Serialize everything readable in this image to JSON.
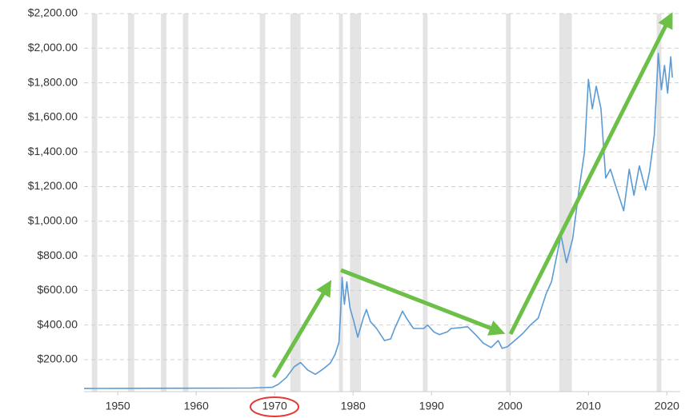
{
  "chart_data": {
    "type": "line",
    "color": "#5b9bd5",
    "band_color": "#e4e4e4",
    "xlim": [
      1945.7,
      2021.7
    ],
    "ylim": [
      15,
      2200
    ],
    "grid": true,
    "xticks": [
      1950,
      1960,
      1970,
      1980,
      1990,
      2000,
      2010,
      2020
    ],
    "yticks": [
      {
        "value": 200,
        "label": "$200.00"
      },
      {
        "value": 400,
        "label": "$400.00"
      },
      {
        "value": 600,
        "label": "$600.00"
      },
      {
        "value": 800,
        "label": "$800.00"
      },
      {
        "value": 1000,
        "label": "$1,000.00"
      },
      {
        "value": 1200,
        "label": "$1,200.00"
      },
      {
        "value": 1400,
        "label": "$1,400.00"
      },
      {
        "value": 1600,
        "label": "$1,600.00"
      },
      {
        "value": 1800,
        "label": "$1,800.00"
      },
      {
        "value": 2000,
        "label": "$2,000.00"
      },
      {
        "value": 2200,
        "label": "$2,200.00"
      }
    ],
    "shaded_periods": [
      [
        1946.7,
        1947.4
      ],
      [
        1951.3,
        1952.1
      ],
      [
        1955.5,
        1956.2
      ],
      [
        1958.3,
        1959.0
      ],
      [
        1968.1,
        1968.8
      ],
      [
        1972.0,
        1973.3
      ],
      [
        1978.2,
        1978.7
      ],
      [
        1979.6,
        1981.0
      ],
      [
        1988.9,
        1989.5
      ],
      [
        1999.5,
        2000.1
      ],
      [
        2006.3,
        2007.9
      ],
      [
        2018.7,
        2019.3
      ]
    ],
    "x": [
      1945.7,
      1950,
      1960,
      1967,
      1968.5,
      1969.7,
      1970.5,
      1971.5,
      1972.5,
      1973.3,
      1974.2,
      1975.2,
      1976.3,
      1977.1,
      1977.7,
      1978.2,
      1978.4,
      1978.6,
      1978.9,
      1979.2,
      1979.6,
      1980.1,
      1980.6,
      1981.3,
      1981.7,
      1982.2,
      1983.0,
      1984.0,
      1984.8,
      1985.3,
      1986.3,
      1986.8,
      1987.7,
      1989.0,
      1989.5,
      1990.3,
      1991.0,
      1992.0,
      1992.5,
      1993.7,
      1994.6,
      1995.7,
      1996.6,
      1997.6,
      1998.5,
      1999.0,
      1999.7,
      2000.6,
      2001.6,
      2002.6,
      2003.6,
      2004.6,
      2005.3,
      2006.5,
      2007.2,
      2008.0,
      2008.8,
      2009.5,
      2010.0,
      2010.5,
      2011.0,
      2011.6,
      2012.2,
      2012.8,
      2013.5,
      2014.5,
      2015.2,
      2015.8,
      2016.5,
      2017.3,
      2017.8,
      2018.4,
      2018.9,
      2019.3,
      2019.7,
      2020.1,
      2020.5,
      2020.7
    ],
    "values": [
      33,
      34,
      35,
      36,
      38,
      40,
      58,
      97,
      159,
      183,
      140,
      115,
      150,
      180,
      230,
      300,
      460,
      675,
      520,
      650,
      500,
      420,
      330,
      440,
      490,
      420,
      380,
      310,
      320,
      380,
      480,
      440,
      380,
      380,
      400,
      360,
      345,
      360,
      380,
      385,
      390,
      340,
      295,
      270,
      310,
      265,
      275,
      310,
      350,
      400,
      440,
      580,
      650,
      920,
      760,
      900,
      1180,
      1400,
      1820,
      1650,
      1780,
      1650,
      1250,
      1300,
      1200,
      1060,
      1300,
      1150,
      1320,
      1180,
      1290,
      1500,
      1970,
      1760,
      1900,
      1740,
      1950,
      1830
    ]
  }
}
